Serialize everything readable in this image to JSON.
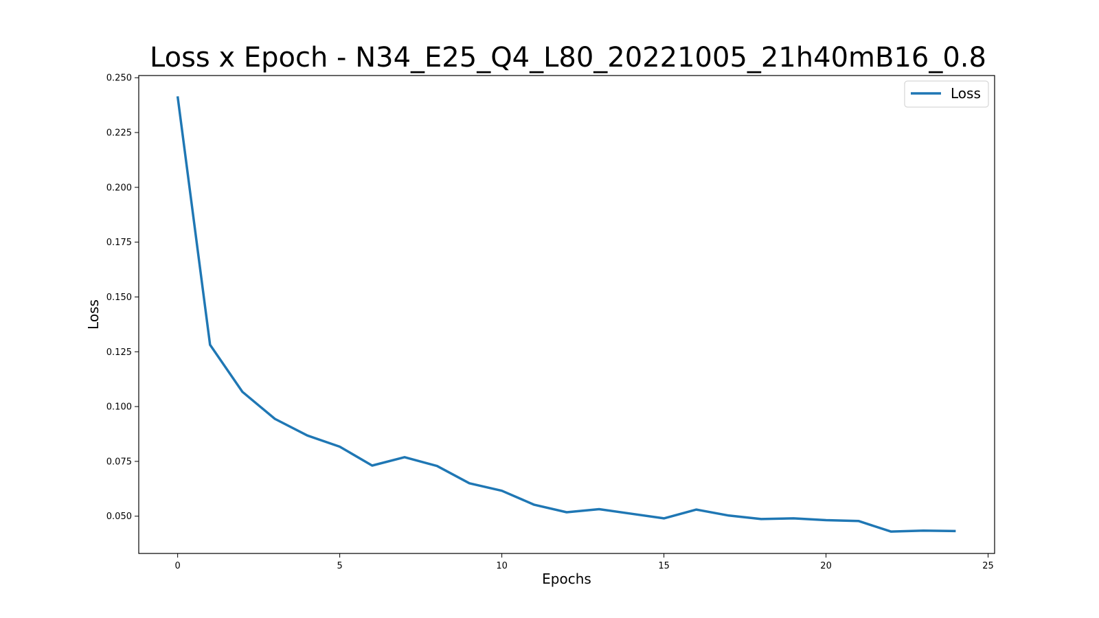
{
  "chart_data": {
    "type": "line",
    "title": "Loss x Epoch - N34_E25_Q4_L80_20221005_21h40mB16_0.8",
    "xlabel": "Epochs",
    "ylabel": "Loss",
    "xlim": [
      -1.2,
      25.2
    ],
    "ylim": [
      0.033,
      0.251
    ],
    "xticks": [
      0,
      5,
      10,
      15,
      20,
      25
    ],
    "yticks": [
      0.05,
      0.075,
      0.1,
      0.125,
      0.15,
      0.175,
      0.2,
      0.225,
      0.25
    ],
    "xtick_labels": [
      "0",
      "5",
      "10",
      "15",
      "20",
      "25"
    ],
    "ytick_labels": [
      "0.050",
      "0.075",
      "0.100",
      "0.125",
      "0.150",
      "0.175",
      "0.200",
      "0.225",
      "0.250"
    ],
    "grid": false,
    "legend_position": "top-right",
    "x": [
      0,
      1,
      2,
      3,
      4,
      5,
      6,
      7,
      8,
      9,
      10,
      11,
      12,
      13,
      14,
      15,
      16,
      17,
      18,
      19,
      20,
      21,
      22,
      23,
      24
    ],
    "series": [
      {
        "name": "Loss",
        "color": "#1f77b4",
        "values": [
          0.2415,
          0.1282,
          0.1067,
          0.0944,
          0.0868,
          0.0817,
          0.0731,
          0.0769,
          0.0729,
          0.065,
          0.0616,
          0.0552,
          0.0518,
          0.0532,
          0.0511,
          0.049,
          0.053,
          0.0503,
          0.0487,
          0.049,
          0.0482,
          0.0478,
          0.043,
          0.0434,
          0.0432
        ]
      }
    ]
  }
}
